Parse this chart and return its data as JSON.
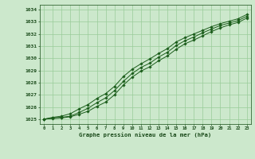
{
  "title": "Graphe pression niveau de la mer (hPa)",
  "background_color": "#cce8cc",
  "plot_bg_color": "#cce8cc",
  "grid_color": "#99cc99",
  "line_color": "#1a5c1a",
  "marker_color": "#1a5c1a",
  "xlim": [
    -0.5,
    23.5
  ],
  "ylim": [
    1024.6,
    1034.4
  ],
  "yticks": [
    1025,
    1026,
    1027,
    1028,
    1029,
    1030,
    1031,
    1032,
    1033,
    1034
  ],
  "xticks": [
    0,
    1,
    2,
    3,
    4,
    5,
    6,
    7,
    8,
    9,
    10,
    11,
    12,
    13,
    14,
    15,
    16,
    17,
    18,
    19,
    20,
    21,
    22,
    23
  ],
  "hours": [
    0,
    1,
    2,
    3,
    4,
    5,
    6,
    7,
    8,
    9,
    10,
    11,
    12,
    13,
    14,
    15,
    16,
    17,
    18,
    19,
    20,
    21,
    22,
    23
  ],
  "line1": [
    1025.0,
    1025.1,
    1025.15,
    1025.25,
    1025.55,
    1025.9,
    1026.35,
    1026.75,
    1027.35,
    1028.1,
    1028.75,
    1029.25,
    1029.6,
    1030.1,
    1030.5,
    1031.05,
    1031.45,
    1031.75,
    1032.1,
    1032.4,
    1032.7,
    1032.9,
    1033.1,
    1033.45
  ],
  "line2": [
    1025.0,
    1025.15,
    1025.25,
    1025.45,
    1025.85,
    1026.2,
    1026.7,
    1027.1,
    1027.7,
    1028.5,
    1029.1,
    1029.55,
    1029.95,
    1030.4,
    1030.8,
    1031.35,
    1031.7,
    1032.0,
    1032.3,
    1032.6,
    1032.85,
    1033.05,
    1033.25,
    1033.6
  ],
  "line3": [
    1025.0,
    1025.05,
    1025.1,
    1025.2,
    1025.4,
    1025.65,
    1026.05,
    1026.4,
    1027.0,
    1027.8,
    1028.45,
    1028.95,
    1029.3,
    1029.8,
    1030.2,
    1030.75,
    1031.2,
    1031.5,
    1031.85,
    1032.2,
    1032.5,
    1032.75,
    1032.95,
    1033.3
  ]
}
